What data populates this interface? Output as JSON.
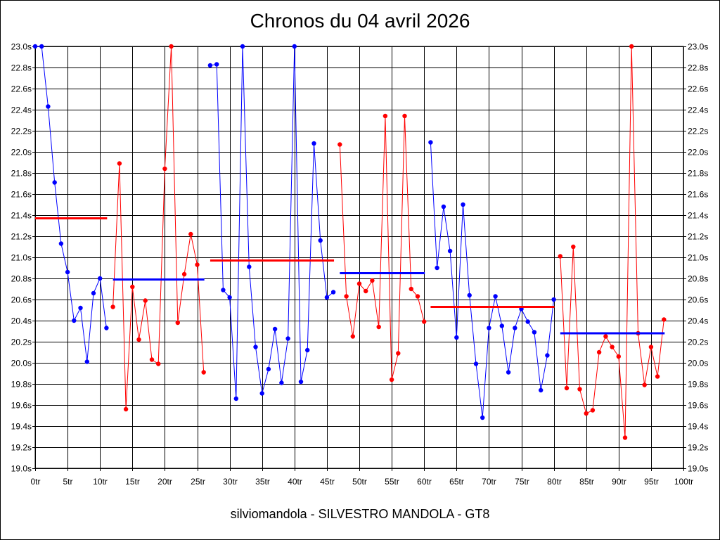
{
  "chart_data": {
    "type": "line",
    "title": "Chronos du 04 avril 2026",
    "subtitle": "silviomandola - SILVESTRO MANDOLA - GT8",
    "xlim": [
      0,
      100
    ],
    "ylim": [
      19.0,
      23.0
    ],
    "grid": true,
    "x_ticks": [
      0,
      5,
      10,
      15,
      20,
      25,
      30,
      35,
      40,
      45,
      50,
      55,
      60,
      65,
      70,
      75,
      80,
      85,
      90,
      95,
      100
    ],
    "x_tick_labels": [
      "0tr",
      "5tr",
      "10tr",
      "15tr",
      "20tr",
      "25tr",
      "30tr",
      "35tr",
      "40tr",
      "45tr",
      "50tr",
      "55tr",
      "60tr",
      "65tr",
      "70tr",
      "75tr",
      "80tr",
      "85tr",
      "90tr",
      "95tr",
      "100tr"
    ],
    "y_ticks": [
      19.0,
      19.2,
      19.4,
      19.6,
      19.8,
      20.0,
      20.2,
      20.4,
      20.6,
      20.8,
      21.0,
      21.2,
      21.4,
      21.6,
      21.8,
      22.0,
      22.2,
      22.4,
      22.6,
      22.8,
      23.0
    ],
    "y_tick_labels": [
      "19.0s",
      "19.2s",
      "19.4s",
      "19.6s",
      "19.8s",
      "20.0s",
      "20.2s",
      "20.4s",
      "20.6s",
      "20.8s",
      "21.0s",
      "21.2s",
      "21.4s",
      "21.6s",
      "21.8s",
      "22.0s",
      "22.2s",
      "22.4s",
      "22.6s",
      "22.8s",
      "23.0s"
    ],
    "colors": {
      "blue": "#0000ff",
      "red": "#ff0000"
    },
    "segments": [
      {
        "color": "blue",
        "x": [
          0,
          1,
          2,
          3,
          4,
          5,
          6,
          7,
          8,
          9,
          10,
          11
        ],
        "y": [
          23.0,
          23.0,
          22.43,
          21.71,
          21.13,
          20.86,
          20.4,
          20.52,
          20.01,
          20.66,
          20.8,
          20.33
        ],
        "average": 21.37
      },
      {
        "color": "red",
        "x": [
          12,
          13,
          14,
          15,
          16,
          17,
          18,
          19,
          20,
          21,
          22,
          23,
          24,
          25,
          26
        ],
        "y": [
          20.53,
          21.89,
          19.56,
          20.72,
          20.22,
          20.59,
          20.03,
          19.99,
          21.84,
          23.0,
          20.38,
          20.84,
          21.22,
          20.93,
          19.91
        ],
        "average": 20.79,
        "avg_color": "blue"
      },
      {
        "color": "blue",
        "x": [
          27,
          28,
          29,
          30,
          31,
          32,
          33,
          34,
          35,
          36,
          37,
          38,
          39,
          40,
          41,
          42,
          43,
          44,
          45,
          46
        ],
        "y": [
          22.82,
          22.83,
          20.69,
          20.62,
          19.66,
          23.0,
          20.91,
          20.15,
          19.71,
          19.94,
          20.32,
          19.81,
          20.23,
          23.0,
          19.82,
          20.12,
          22.08,
          21.16,
          20.62,
          20.67
        ],
        "average": 20.97,
        "avg_color": "red"
      },
      {
        "color": "red",
        "x": [
          47,
          48,
          49,
          50,
          51,
          52,
          53,
          54,
          55,
          56,
          57,
          58,
          59,
          60
        ],
        "y": [
          22.07,
          20.63,
          20.25,
          20.75,
          20.68,
          20.78,
          20.34,
          22.34,
          19.84,
          20.09,
          22.34,
          20.7,
          20.63,
          20.39
        ],
        "average": 20.85,
        "avg_color": "blue"
      },
      {
        "color": "blue",
        "x": [
          61,
          62,
          63,
          64,
          65,
          66,
          67,
          68,
          69,
          70,
          71,
          72,
          73,
          74,
          75,
          76,
          77,
          78,
          79,
          80
        ],
        "y": [
          22.09,
          20.9,
          21.48,
          21.06,
          20.24,
          21.5,
          20.64,
          19.99,
          19.48,
          20.33,
          20.63,
          20.35,
          19.91,
          20.33,
          20.51,
          20.39,
          20.29,
          19.74,
          20.07,
          20.6
        ],
        "average": 20.53,
        "avg_color": "red"
      },
      {
        "color": "red",
        "x": [
          81,
          82,
          83,
          84,
          85,
          86,
          87,
          88,
          89,
          90,
          91,
          92,
          93,
          94,
          95,
          96,
          97
        ],
        "y": [
          21.01,
          19.76,
          21.1,
          19.75,
          19.52,
          19.55,
          20.1,
          20.25,
          20.15,
          20.06,
          19.29,
          23.0,
          20.28,
          19.79,
          20.15,
          19.87,
          20.41
        ],
        "average": 20.28,
        "avg_color": "blue"
      }
    ],
    "averages": [
      {
        "x_from": 0,
        "x_to": 11,
        "y": 21.37,
        "color": "red"
      },
      {
        "x_from": 12,
        "x_to": 26,
        "y": 20.79,
        "color": "blue"
      },
      {
        "x_from": 27,
        "x_to": 46,
        "y": 20.97,
        "color": "red"
      },
      {
        "x_from": 47,
        "x_to": 60,
        "y": 20.85,
        "color": "blue"
      },
      {
        "x_from": 61,
        "x_to": 80,
        "y": 20.53,
        "color": "red"
      },
      {
        "x_from": 81,
        "x_to": 97,
        "y": 20.28,
        "color": "blue"
      }
    ]
  }
}
